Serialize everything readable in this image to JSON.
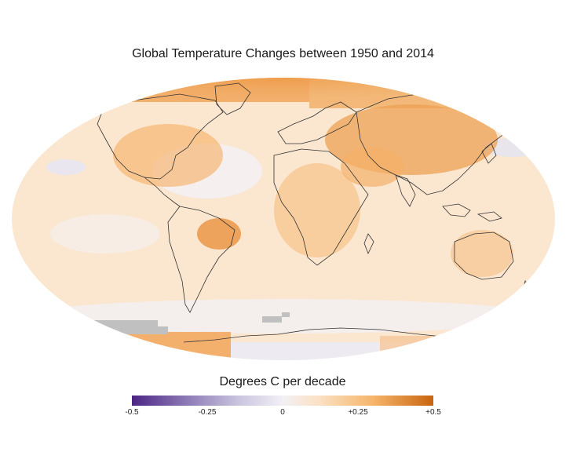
{
  "title": "Global Temperature Changes between 1950 and 2014",
  "legend": {
    "title": "Degrees C per decade",
    "ticks": [
      "-0.5",
      "-0.25",
      "0",
      "+0.25",
      "+0.5"
    ],
    "min": -0.5,
    "max": 0.5
  },
  "colors": {
    "cool_strong": "#4b2584",
    "neutral": "#f2f0f6",
    "warm_light": "#fbe1c4",
    "warm_mid": "#f6b56b",
    "warm_strong": "#c8640f",
    "no_data": "#c0c0c0",
    "coastline": "#333333"
  }
}
